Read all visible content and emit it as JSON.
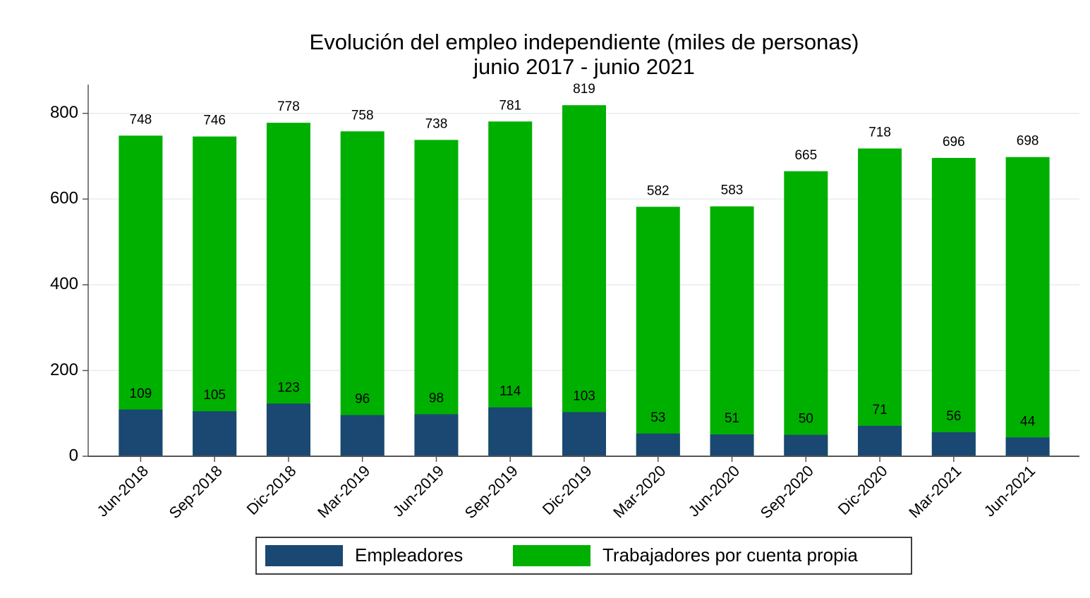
{
  "chart_data": {
    "type": "bar",
    "overlap": true,
    "title": [
      "Evolución del empleo independiente (miles de personas)",
      "junio 2017 - junio 2021"
    ],
    "categories": [
      "Jun-2018",
      "Sep-2018",
      "Dic-2018",
      "Mar-2019",
      "Jun-2019",
      "Sep-2019",
      "Dic-2019",
      "Mar-2020",
      "Jun-2020",
      "Sep-2020",
      "Dic-2020",
      "Mar-2021",
      "Jun-2021"
    ],
    "series": [
      {
        "name": "Trabajadores por cuenta propia",
        "color": "#00b000",
        "values": [
          748,
          746,
          778,
          758,
          738,
          781,
          819,
          582,
          583,
          665,
          718,
          696,
          698
        ]
      },
      {
        "name": "Empleadores",
        "color": "#1a4872",
        "values": [
          109,
          105,
          123,
          96,
          98,
          114,
          103,
          53,
          51,
          50,
          71,
          56,
          44
        ]
      }
    ],
    "legend_order": [
      1,
      0
    ],
    "ylim": [
      0,
      867
    ],
    "yticks": [
      0,
      200,
      400,
      600,
      800
    ],
    "grid": true
  }
}
